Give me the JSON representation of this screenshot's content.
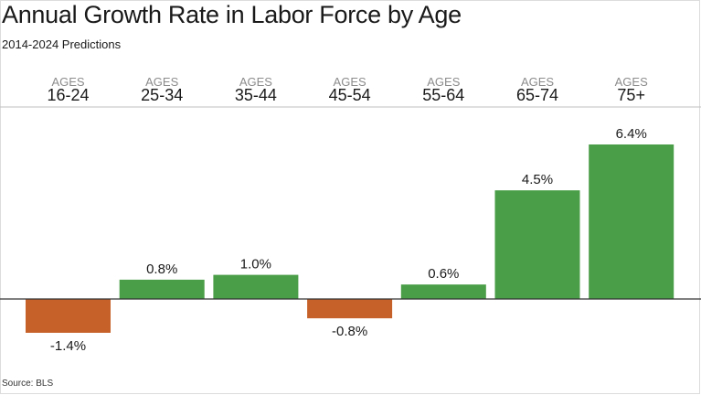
{
  "chart_data": {
    "type": "bar",
    "title": "Annual Growth Rate in Labor Force by Age",
    "subtitle": "2014-2024 Predictions",
    "category_prefix": "AGES",
    "categories": [
      "16-24",
      "25-34",
      "35-44",
      "45-54",
      "55-64",
      "65-74",
      "75+"
    ],
    "values": [
      -1.4,
      0.8,
      1.0,
      -0.8,
      0.6,
      4.5,
      6.4
    ],
    "value_labels": [
      "-1.4%",
      "0.8%",
      "1.0%",
      "-0.8%",
      "0.6%",
      "4.5%",
      "6.4%"
    ],
    "ylim": [
      -1.4,
      6.4
    ],
    "grid": false,
    "legend": "none",
    "colors": {
      "positive": "#4a9e47",
      "negative": "#c7612a",
      "baseline": "#333333",
      "header_rule": "#bfbfbf",
      "prefix_text": "#8c8c8c",
      "text": "#1a1a1a"
    },
    "source": "Source: BLS"
  }
}
